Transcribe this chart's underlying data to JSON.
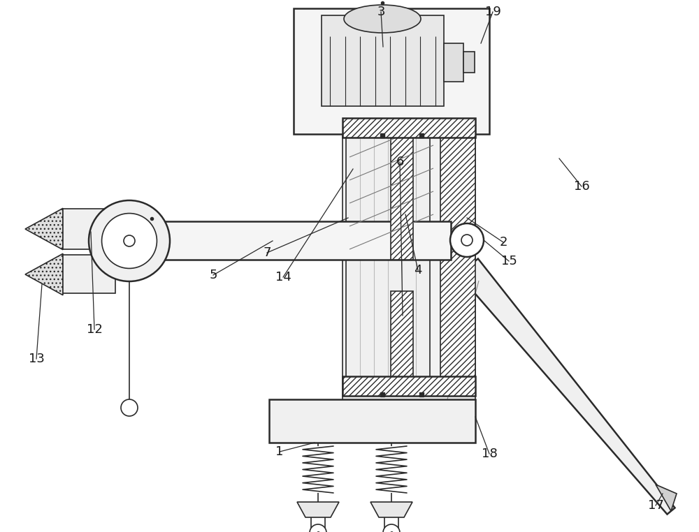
{
  "bg_color": "#ffffff",
  "line_color": "#2a2a2a",
  "label_color": "#1a1a1a",
  "figsize": [
    10.0,
    7.62
  ],
  "dpi": 100
}
